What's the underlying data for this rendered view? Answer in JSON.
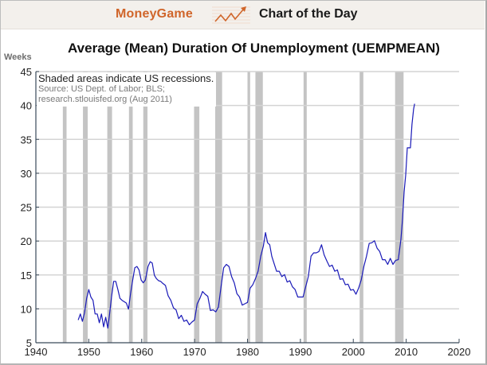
{
  "header": {
    "brand": "MoneyGame",
    "logo_icon": "rising-chart-arrow-icon",
    "subtitle": "Chart of the Day",
    "brand_color": "#d0652a"
  },
  "chart": {
    "title": "Average (Mean) Duration Of Unemployment (UEMPMEAN)",
    "y_unit_label": "Weeks",
    "note": {
      "line1": "Shaded areas indicate US recessions.",
      "line2": "Source: US Dept. of Labor; BLS;",
      "line3": "research.stlouisfed.org (Aug 2011)"
    },
    "line_color": "#1a1ab8",
    "recession_color": "#c4c4c4",
    "grid_color": "#d4d4d4"
  },
  "chart_data": {
    "type": "line",
    "title": "Average (Mean) Duration Of Unemployment (UEMPMEAN)",
    "xlabel": "",
    "ylabel": "Weeks",
    "xlim": [
      1940,
      2020
    ],
    "ylim": [
      5,
      45
    ],
    "x_ticks": [
      1940,
      1950,
      1960,
      1970,
      1980,
      1990,
      2000,
      2010,
      2020
    ],
    "y_ticks": [
      5,
      10,
      15,
      20,
      25,
      30,
      35,
      40,
      45
    ],
    "grid": "horizontal",
    "annotations": [
      "Shaded areas indicate US recessions.",
      "Source: US Dept. of Labor; BLS;",
      "research.stlouisfed.org (Aug 2011)"
    ],
    "recessions": [
      [
        1945.1,
        1945.8
      ],
      [
        1948.9,
        1949.8
      ],
      [
        1953.5,
        1954.4
      ],
      [
        1957.6,
        1958.3
      ],
      [
        1960.3,
        1961.1
      ],
      [
        1969.9,
        1970.9
      ],
      [
        1973.9,
        1975.2
      ],
      [
        1980.0,
        1980.5
      ],
      [
        1981.5,
        1982.9
      ],
      [
        1990.6,
        1991.2
      ],
      [
        2001.2,
        2001.9
      ],
      [
        2007.9,
        2009.5
      ]
    ],
    "series": [
      {
        "name": "UEMPMEAN",
        "x": [
          1948.0,
          1948.4,
          1948.8,
          1949.2,
          1949.6,
          1950.0,
          1950.4,
          1950.8,
          1951.2,
          1951.6,
          1952.0,
          1952.4,
          1952.8,
          1953.2,
          1953.6,
          1953.9,
          1954.3,
          1954.7,
          1955.1,
          1955.5,
          1955.9,
          1956.3,
          1956.7,
          1957.1,
          1957.5,
          1957.9,
          1958.3,
          1958.7,
          1959.1,
          1959.5,
          1959.9,
          1960.3,
          1960.7,
          1961.2,
          1961.6,
          1962.0,
          1962.4,
          1962.8,
          1963.2,
          1963.6,
          1964.0,
          1964.5,
          1965.0,
          1965.5,
          1966.0,
          1966.5,
          1967.0,
          1967.5,
          1968.0,
          1968.5,
          1969.0,
          1969.5,
          1970.0,
          1970.5,
          1971.0,
          1971.5,
          1972.0,
          1972.5,
          1973.0,
          1973.5,
          1974.0,
          1974.5,
          1975.0,
          1975.5,
          1976.0,
          1976.5,
          1977.0,
          1977.5,
          1978.0,
          1978.5,
          1979.0,
          1979.5,
          1980.0,
          1980.5,
          1981.0,
          1981.5,
          1982.0,
          1982.5,
          1983.0,
          1983.4,
          1983.8,
          1984.2,
          1984.6,
          1985.0,
          1985.5,
          1986.0,
          1986.5,
          1987.0,
          1987.5,
          1988.0,
          1988.5,
          1989.0,
          1989.5,
          1990.0,
          1990.5,
          1991.0,
          1991.5,
          1992.0,
          1992.5,
          1993.0,
          1993.5,
          1994.0,
          1994.5,
          1995.0,
          1995.5,
          1996.0,
          1996.5,
          1997.0,
          1997.5,
          1998.0,
          1998.5,
          1999.0,
          1999.5,
          2000.0,
          2000.5,
          2001.0,
          2001.5,
          2002.0,
          2002.5,
          2003.0,
          2003.5,
          2004.0,
          2004.5,
          2005.0,
          2005.5,
          2006.0,
          2006.5,
          2007.0,
          2007.5,
          2008.0,
          2008.5,
          2009.0,
          2009.3,
          2009.6,
          2009.9,
          2010.2,
          2010.5,
          2010.8,
          2011.1,
          2011.4,
          2011.6
        ],
        "values": [
          8.6,
          9.0,
          8.4,
          9.2,
          11.8,
          12.6,
          12.0,
          11.0,
          9.5,
          9.0,
          8.2,
          9.0,
          7.6,
          8.5,
          7.4,
          8.8,
          12.0,
          13.8,
          14.3,
          12.6,
          11.8,
          11.0,
          11.3,
          10.6,
          10.2,
          12.0,
          14.5,
          15.8,
          16.5,
          15.5,
          14.5,
          13.6,
          14.5,
          16.0,
          17.2,
          16.5,
          15.2,
          14.2,
          14.4,
          13.8,
          14.0,
          13.2,
          12.2,
          11.0,
          10.4,
          9.6,
          8.8,
          8.8,
          8.4,
          8.1,
          7.9,
          7.8,
          8.6,
          10.5,
          11.8,
          12.3,
          12.4,
          11.6,
          10.0,
          9.6,
          9.8,
          10.0,
          13.5,
          15.8,
          16.8,
          16.0,
          15.0,
          13.6,
          12.5,
          11.5,
          10.8,
          10.5,
          11.2,
          12.8,
          13.8,
          14.2,
          15.8,
          17.5,
          19.5,
          21.0,
          20.0,
          19.2,
          18.0,
          16.5,
          15.8,
          15.3,
          15.0,
          14.8,
          14.2,
          13.9,
          13.5,
          12.6,
          12.0,
          11.5,
          12.0,
          13.0,
          15.0,
          17.5,
          18.5,
          18.0,
          18.7,
          19.2,
          18.2,
          16.8,
          16.5,
          16.2,
          15.8,
          15.5,
          14.6,
          14.2,
          13.8,
          13.4,
          13.0,
          12.6,
          12.4,
          12.8,
          14.5,
          16.0,
          18.0,
          19.4,
          20.0,
          19.8,
          19.2,
          18.2,
          17.5,
          17.0,
          16.8,
          17.2,
          16.8,
          16.9,
          17.5,
          20.0,
          23.5,
          27.0,
          30.0,
          33.5,
          34.0,
          33.5,
          37.5,
          39.2,
          40.5
        ]
      }
    ]
  }
}
